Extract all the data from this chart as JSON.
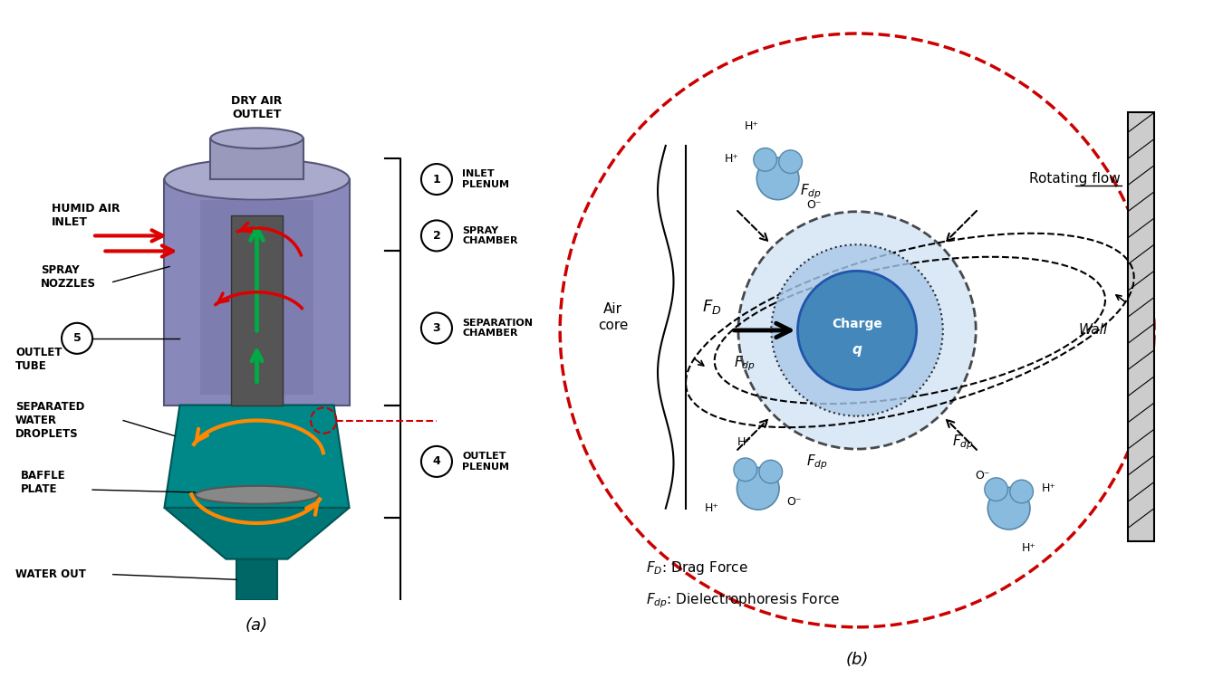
{
  "fig_width": 13.5,
  "fig_height": 7.59,
  "bg_color": "#ffffff",
  "label_a": "(a)",
  "label_b": "(b)",
  "zones": [
    {
      "num": "1",
      "label": "INLET\nPLENUM"
    },
    {
      "num": "2",
      "label": "SPRAY\nCHAMBER"
    },
    {
      "num": "3",
      "label": "SEPARATION\nCHAMBER"
    },
    {
      "num": "4",
      "label": "OUTLET\nPLENUM"
    }
  ],
  "annotations_left": [
    "HUMID AIR\nINLET",
    "SPRAY\nNOZZLES",
    "5\nOUTLET\nTUBE",
    "SEPARATED\nWATER\nDROPLETS",
    "BAFFLE\nPLATE",
    "WATER OUT"
  ],
  "device_color_top": "#9999cc",
  "device_color_bottom": "#008080",
  "arrow_red": "#dd0000",
  "arrow_green": "#00aa44",
  "arrow_orange": "#ff8800",
  "rotating_flow_label": "Rotating flow",
  "wall_label": "Wall",
  "air_core_label": "Air\ncore",
  "charge_label": "Charge\nq",
  "fd_label": "F_D",
  "fdp_label": "F_dp",
  "legend_fd": "F_D: Drag Force",
  "legend_fdp": "F_dp: Dielectrophoresis Force",
  "circle_color": "#aaccee",
  "charge_circle_color": "#5599cc",
  "outer_circle_red": "#cc0000"
}
